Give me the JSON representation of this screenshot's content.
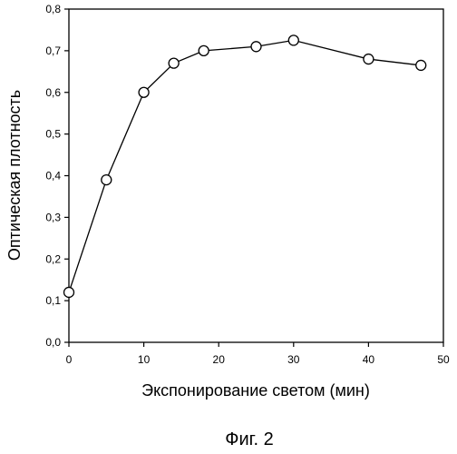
{
  "chart_data": {
    "type": "line",
    "xlabel": "Экспонирование светом (мин)",
    "ylabel": "Оптическая плотность",
    "caption": "Фиг. 2",
    "xlim": [
      0,
      50
    ],
    "ylim": [
      0.0,
      0.8
    ],
    "x_ticks": [
      0,
      10,
      20,
      30,
      40,
      50
    ],
    "y_ticks": [
      0.0,
      0.1,
      0.2,
      0.3,
      0.4,
      0.5,
      0.6,
      0.7,
      0.8
    ],
    "x_tick_labels": [
      "0",
      "10",
      "20",
      "30",
      "40",
      "50"
    ],
    "y_tick_labels": [
      "0,0",
      "0,1",
      "0,2",
      "0,3",
      "0,4",
      "0,5",
      "0,6",
      "0,7",
      "0,8"
    ],
    "grid": false,
    "marker": "open-circle",
    "series": [
      {
        "x": [
          0,
          5,
          10,
          14,
          18,
          25,
          30,
          40,
          47
        ],
        "y": [
          0.12,
          0.39,
          0.6,
          0.67,
          0.7,
          0.71,
          0.725,
          0.68,
          0.665
        ]
      }
    ]
  }
}
